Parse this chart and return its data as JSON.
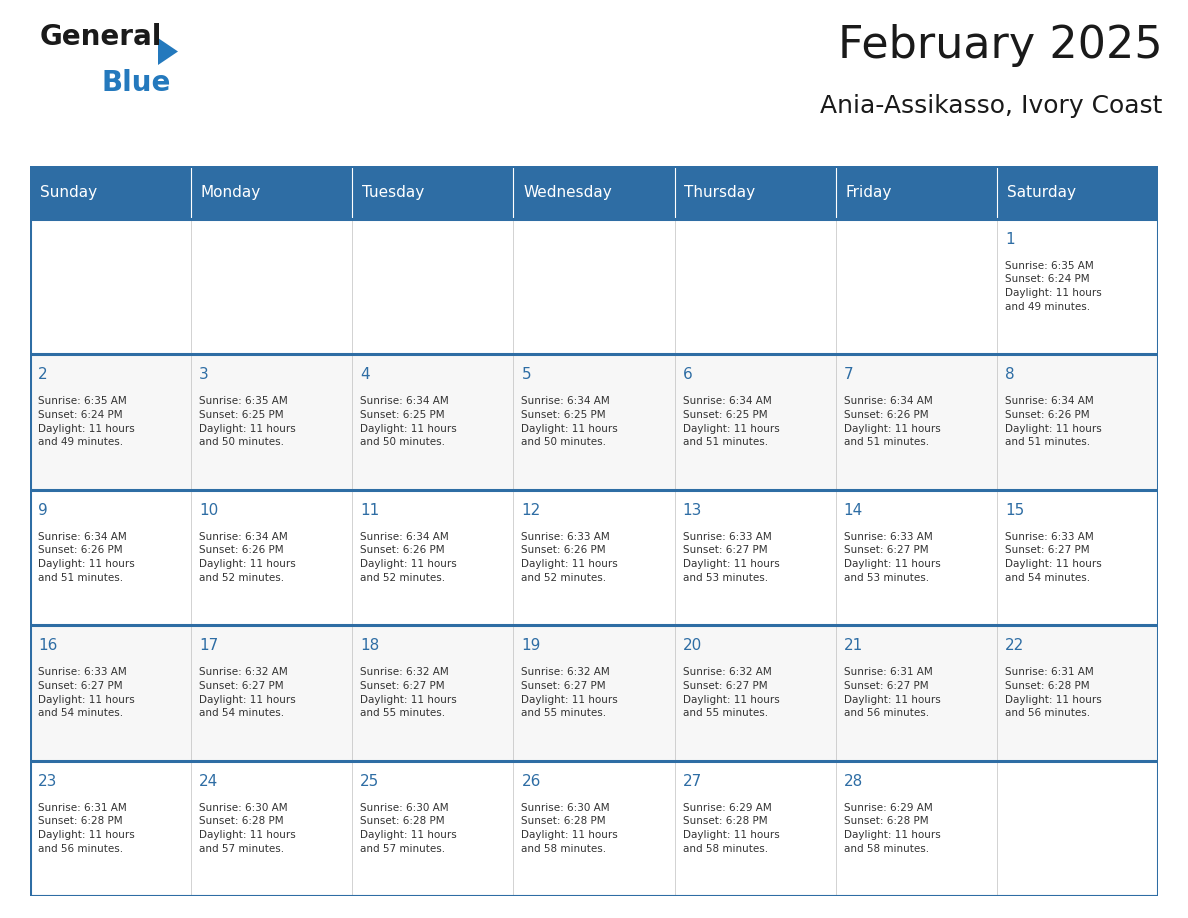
{
  "title": "February 2025",
  "subtitle": "Ania-Assikasso, Ivory Coast",
  "header_bg_color": "#2E6DA4",
  "header_text_color": "#FFFFFF",
  "day_number_color": "#2E6DA4",
  "text_color": "#333333",
  "border_color": "#2E6DA4",
  "days_of_week": [
    "Sunday",
    "Monday",
    "Tuesday",
    "Wednesday",
    "Thursday",
    "Friday",
    "Saturday"
  ],
  "calendar_data": [
    [
      {
        "day": 0,
        "info": ""
      },
      {
        "day": 0,
        "info": ""
      },
      {
        "day": 0,
        "info": ""
      },
      {
        "day": 0,
        "info": ""
      },
      {
        "day": 0,
        "info": ""
      },
      {
        "day": 0,
        "info": ""
      },
      {
        "day": 1,
        "info": "Sunrise: 6:35 AM\nSunset: 6:24 PM\nDaylight: 11 hours\nand 49 minutes."
      }
    ],
    [
      {
        "day": 2,
        "info": "Sunrise: 6:35 AM\nSunset: 6:24 PM\nDaylight: 11 hours\nand 49 minutes."
      },
      {
        "day": 3,
        "info": "Sunrise: 6:35 AM\nSunset: 6:25 PM\nDaylight: 11 hours\nand 50 minutes."
      },
      {
        "day": 4,
        "info": "Sunrise: 6:34 AM\nSunset: 6:25 PM\nDaylight: 11 hours\nand 50 minutes."
      },
      {
        "day": 5,
        "info": "Sunrise: 6:34 AM\nSunset: 6:25 PM\nDaylight: 11 hours\nand 50 minutes."
      },
      {
        "day": 6,
        "info": "Sunrise: 6:34 AM\nSunset: 6:25 PM\nDaylight: 11 hours\nand 51 minutes."
      },
      {
        "day": 7,
        "info": "Sunrise: 6:34 AM\nSunset: 6:26 PM\nDaylight: 11 hours\nand 51 minutes."
      },
      {
        "day": 8,
        "info": "Sunrise: 6:34 AM\nSunset: 6:26 PM\nDaylight: 11 hours\nand 51 minutes."
      }
    ],
    [
      {
        "day": 9,
        "info": "Sunrise: 6:34 AM\nSunset: 6:26 PM\nDaylight: 11 hours\nand 51 minutes."
      },
      {
        "day": 10,
        "info": "Sunrise: 6:34 AM\nSunset: 6:26 PM\nDaylight: 11 hours\nand 52 minutes."
      },
      {
        "day": 11,
        "info": "Sunrise: 6:34 AM\nSunset: 6:26 PM\nDaylight: 11 hours\nand 52 minutes."
      },
      {
        "day": 12,
        "info": "Sunrise: 6:33 AM\nSunset: 6:26 PM\nDaylight: 11 hours\nand 52 minutes."
      },
      {
        "day": 13,
        "info": "Sunrise: 6:33 AM\nSunset: 6:27 PM\nDaylight: 11 hours\nand 53 minutes."
      },
      {
        "day": 14,
        "info": "Sunrise: 6:33 AM\nSunset: 6:27 PM\nDaylight: 11 hours\nand 53 minutes."
      },
      {
        "day": 15,
        "info": "Sunrise: 6:33 AM\nSunset: 6:27 PM\nDaylight: 11 hours\nand 54 minutes."
      }
    ],
    [
      {
        "day": 16,
        "info": "Sunrise: 6:33 AM\nSunset: 6:27 PM\nDaylight: 11 hours\nand 54 minutes."
      },
      {
        "day": 17,
        "info": "Sunrise: 6:32 AM\nSunset: 6:27 PM\nDaylight: 11 hours\nand 54 minutes."
      },
      {
        "day": 18,
        "info": "Sunrise: 6:32 AM\nSunset: 6:27 PM\nDaylight: 11 hours\nand 55 minutes."
      },
      {
        "day": 19,
        "info": "Sunrise: 6:32 AM\nSunset: 6:27 PM\nDaylight: 11 hours\nand 55 minutes."
      },
      {
        "day": 20,
        "info": "Sunrise: 6:32 AM\nSunset: 6:27 PM\nDaylight: 11 hours\nand 55 minutes."
      },
      {
        "day": 21,
        "info": "Sunrise: 6:31 AM\nSunset: 6:27 PM\nDaylight: 11 hours\nand 56 minutes."
      },
      {
        "day": 22,
        "info": "Sunrise: 6:31 AM\nSunset: 6:28 PM\nDaylight: 11 hours\nand 56 minutes."
      }
    ],
    [
      {
        "day": 23,
        "info": "Sunrise: 6:31 AM\nSunset: 6:28 PM\nDaylight: 11 hours\nand 56 minutes."
      },
      {
        "day": 24,
        "info": "Sunrise: 6:30 AM\nSunset: 6:28 PM\nDaylight: 11 hours\nand 57 minutes."
      },
      {
        "day": 25,
        "info": "Sunrise: 6:30 AM\nSunset: 6:28 PM\nDaylight: 11 hours\nand 57 minutes."
      },
      {
        "day": 26,
        "info": "Sunrise: 6:30 AM\nSunset: 6:28 PM\nDaylight: 11 hours\nand 58 minutes."
      },
      {
        "day": 27,
        "info": "Sunrise: 6:29 AM\nSunset: 6:28 PM\nDaylight: 11 hours\nand 58 minutes."
      },
      {
        "day": 28,
        "info": "Sunrise: 6:29 AM\nSunset: 6:28 PM\nDaylight: 11 hours\nand 58 minutes."
      },
      {
        "day": 0,
        "info": ""
      }
    ]
  ],
  "logo_color_general": "#1a1a1a",
  "logo_color_blue": "#2479bd",
  "logo_triangle_color": "#2479bd",
  "title_fontsize": 32,
  "subtitle_fontsize": 18,
  "header_fontsize": 11,
  "day_num_fontsize": 11,
  "cell_text_fontsize": 7.5
}
